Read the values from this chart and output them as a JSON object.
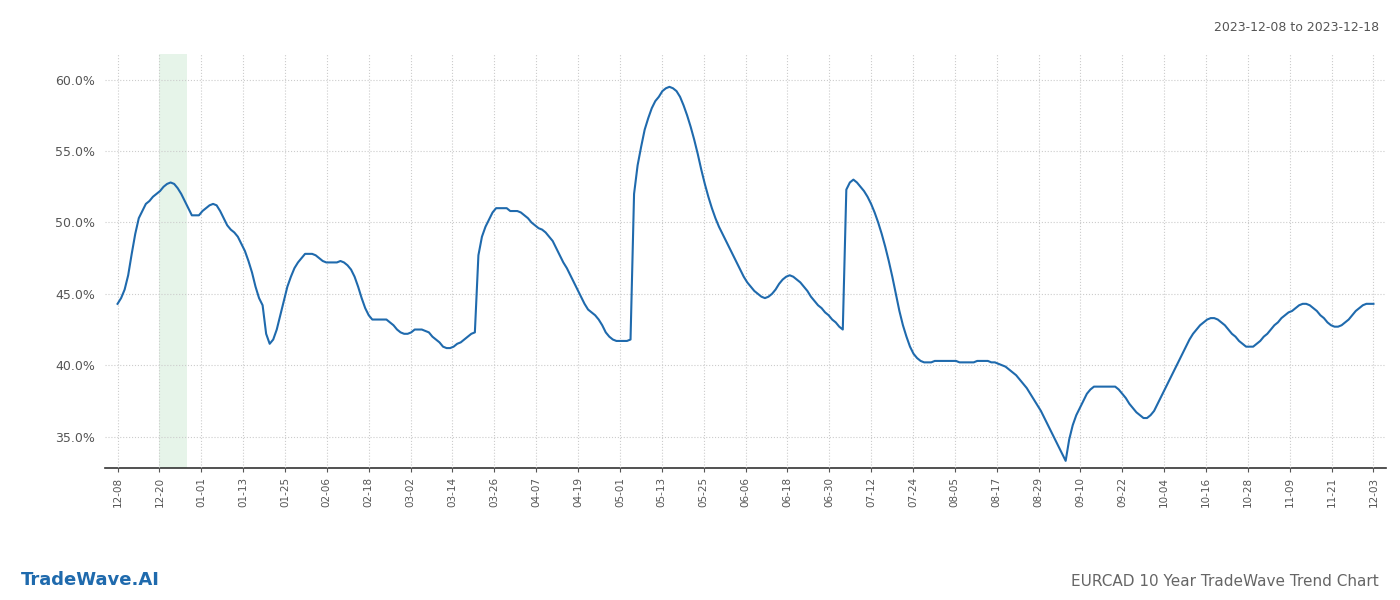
{
  "title_top_right": "2023-12-08 to 2023-12-18",
  "title_bottom_left": "TradeWave.AI",
  "title_bottom_right": "EURCAD 10 Year TradeWave Trend Chart",
  "line_color": "#1f6aad",
  "line_width": 1.5,
  "background_color": "#ffffff",
  "grid_color": "#cccccc",
  "highlight_color": "#d6eddb",
  "highlight_alpha": 0.6,
  "ylim": [
    0.328,
    0.618
  ],
  "yticks": [
    0.35,
    0.4,
    0.45,
    0.5,
    0.55,
    0.6
  ],
  "ytick_labels": [
    "35.0%",
    "40.0%",
    "45.0%",
    "50.0%",
    "55.0%",
    "60.0%"
  ],
  "xtick_labels": [
    "12-08",
    "12-20",
    "01-01",
    "01-13",
    "01-25",
    "02-06",
    "02-18",
    "03-02",
    "03-14",
    "03-26",
    "04-07",
    "04-19",
    "05-01",
    "05-13",
    "05-25",
    "06-06",
    "06-18",
    "06-30",
    "07-12",
    "07-24",
    "08-05",
    "08-17",
    "08-29",
    "09-10",
    "09-22",
    "10-04",
    "10-16",
    "10-28",
    "11-09",
    "11-21",
    "12-03"
  ],
  "highlight_xstart": 1.0,
  "highlight_xend": 1.65,
  "y_values": [
    0.443,
    0.447,
    0.453,
    0.463,
    0.478,
    0.492,
    0.503,
    0.508,
    0.513,
    0.515,
    0.518,
    0.52,
    0.522,
    0.525,
    0.527,
    0.528,
    0.527,
    0.524,
    0.52,
    0.515,
    0.51,
    0.505,
    0.505,
    0.505,
    0.508,
    0.51,
    0.512,
    0.513,
    0.512,
    0.508,
    0.503,
    0.498,
    0.495,
    0.493,
    0.49,
    0.485,
    0.48,
    0.473,
    0.465,
    0.455,
    0.447,
    0.442,
    0.422,
    0.415,
    0.418,
    0.425,
    0.435,
    0.445,
    0.455,
    0.462,
    0.468,
    0.472,
    0.475,
    0.478,
    0.478,
    0.478,
    0.477,
    0.475,
    0.473,
    0.472,
    0.472,
    0.472,
    0.472,
    0.473,
    0.472,
    0.47,
    0.467,
    0.462,
    0.455,
    0.447,
    0.44,
    0.435,
    0.432,
    0.432,
    0.432,
    0.432,
    0.432,
    0.43,
    0.428,
    0.425,
    0.423,
    0.422,
    0.422,
    0.423,
    0.425,
    0.425,
    0.425,
    0.424,
    0.423,
    0.42,
    0.418,
    0.416,
    0.413,
    0.412,
    0.412,
    0.413,
    0.415,
    0.416,
    0.418,
    0.42,
    0.422,
    0.423,
    0.477,
    0.49,
    0.497,
    0.502,
    0.507,
    0.51,
    0.51,
    0.51,
    0.51,
    0.508,
    0.508,
    0.508,
    0.507,
    0.505,
    0.503,
    0.5,
    0.498,
    0.496,
    0.495,
    0.493,
    0.49,
    0.487,
    0.482,
    0.477,
    0.472,
    0.468,
    0.463,
    0.458,
    0.453,
    0.448,
    0.443,
    0.439,
    0.437,
    0.435,
    0.432,
    0.428,
    0.423,
    0.42,
    0.418,
    0.417,
    0.417,
    0.417,
    0.417,
    0.418,
    0.52,
    0.54,
    0.553,
    0.565,
    0.573,
    0.58,
    0.585,
    0.588,
    0.592,
    0.594,
    0.595,
    0.594,
    0.592,
    0.588,
    0.582,
    0.575,
    0.567,
    0.558,
    0.548,
    0.537,
    0.527,
    0.518,
    0.51,
    0.503,
    0.497,
    0.492,
    0.487,
    0.482,
    0.477,
    0.472,
    0.467,
    0.462,
    0.458,
    0.455,
    0.452,
    0.45,
    0.448,
    0.447,
    0.448,
    0.45,
    0.453,
    0.457,
    0.46,
    0.462,
    0.463,
    0.462,
    0.46,
    0.458,
    0.455,
    0.452,
    0.448,
    0.445,
    0.442,
    0.44,
    0.437,
    0.435,
    0.432,
    0.43,
    0.427,
    0.425,
    0.523,
    0.528,
    0.53,
    0.528,
    0.525,
    0.522,
    0.518,
    0.513,
    0.507,
    0.5,
    0.492,
    0.483,
    0.473,
    0.462,
    0.45,
    0.438,
    0.428,
    0.42,
    0.413,
    0.408,
    0.405,
    0.403,
    0.402,
    0.402,
    0.402,
    0.403,
    0.403,
    0.403,
    0.403,
    0.403,
    0.403,
    0.403,
    0.402,
    0.402,
    0.402,
    0.402,
    0.402,
    0.403,
    0.403,
    0.403,
    0.403,
    0.402,
    0.402,
    0.401,
    0.4,
    0.399,
    0.397,
    0.395,
    0.393,
    0.39,
    0.387,
    0.384,
    0.38,
    0.376,
    0.372,
    0.368,
    0.363,
    0.358,
    0.353,
    0.348,
    0.343,
    0.338,
    0.333,
    0.348,
    0.358,
    0.365,
    0.37,
    0.375,
    0.38,
    0.383,
    0.385,
    0.385,
    0.385,
    0.385,
    0.385,
    0.385,
    0.385,
    0.383,
    0.38,
    0.377,
    0.373,
    0.37,
    0.367,
    0.365,
    0.363,
    0.363,
    0.365,
    0.368,
    0.373,
    0.378,
    0.383,
    0.388,
    0.393,
    0.398,
    0.403,
    0.408,
    0.413,
    0.418,
    0.422,
    0.425,
    0.428,
    0.43,
    0.432,
    0.433,
    0.433,
    0.432,
    0.43,
    0.428,
    0.425,
    0.422,
    0.42,
    0.417,
    0.415,
    0.413,
    0.413,
    0.413,
    0.415,
    0.417,
    0.42,
    0.422,
    0.425,
    0.428,
    0.43,
    0.433,
    0.435,
    0.437,
    0.438,
    0.44,
    0.442,
    0.443,
    0.443,
    0.442,
    0.44,
    0.438,
    0.435,
    0.433,
    0.43,
    0.428,
    0.427,
    0.427,
    0.428,
    0.43,
    0.432,
    0.435,
    0.438,
    0.44,
    0.442,
    0.443,
    0.443,
    0.443
  ]
}
